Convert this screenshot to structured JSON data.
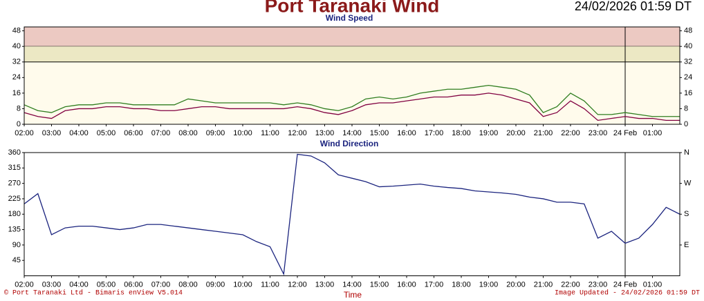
{
  "title": "Port Taranaki Wind",
  "timestamp": "24/02/2026 01:59 DT",
  "x_label": "Time",
  "footer_left": "© Port Taranaki Ltd - Bimaris enView V5.014",
  "footer_right": "Image Updated - 24/02/2026 01:59 DT",
  "chart_data": [
    {
      "type": "line",
      "title": "Wind Speed",
      "background": "#fffbec",
      "bands": [
        {
          "from": 40,
          "to": 50,
          "color": "#ecc9c2"
        },
        {
          "from": 32,
          "to": 40,
          "color": "#ece8c4"
        }
      ],
      "xlim": [
        0,
        24
      ],
      "ylim": [
        0,
        50
      ],
      "y2lim": [
        0,
        50
      ],
      "yticks": [
        0,
        8,
        16,
        24,
        32,
        40,
        48
      ],
      "y2ticks": [
        0,
        8,
        16,
        24,
        32,
        40,
        48
      ],
      "xticks": [
        {
          "value": 0,
          "label": "02:00"
        },
        {
          "value": 1,
          "label": "03:00"
        },
        {
          "value": 2,
          "label": "04:00"
        },
        {
          "value": 3,
          "label": "05:00"
        },
        {
          "value": 4,
          "label": "06:00"
        },
        {
          "value": 5,
          "label": "07:00"
        },
        {
          "value": 6,
          "label": "08:00"
        },
        {
          "value": 7,
          "label": "09:00"
        },
        {
          "value": 8,
          "label": "10:00"
        },
        {
          "value": 9,
          "label": "11:00"
        },
        {
          "value": 10,
          "label": "12:00"
        },
        {
          "value": 11,
          "label": "13:00"
        },
        {
          "value": 12,
          "label": "14:00"
        },
        {
          "value": 13,
          "label": "15:00"
        },
        {
          "value": 14,
          "label": "16:00"
        },
        {
          "value": 15,
          "label": "17:00"
        },
        {
          "value": 16,
          "label": "18:00"
        },
        {
          "value": 17,
          "label": "19:00"
        },
        {
          "value": 18,
          "label": "20:00"
        },
        {
          "value": 19,
          "label": "21:00"
        },
        {
          "value": 20,
          "label": "22:00"
        },
        {
          "value": 21,
          "label": "23:00"
        },
        {
          "value": 22,
          "label": "24 Feb"
        },
        {
          "value": 23,
          "label": "01:00"
        }
      ],
      "day_line": 22,
      "x": [
        0,
        0.5,
        1,
        1.5,
        2,
        2.5,
        3,
        3.5,
        4,
        4.5,
        5,
        5.5,
        6,
        6.5,
        7,
        7.5,
        8,
        8.5,
        9,
        9.5,
        10,
        10.5,
        11,
        11.5,
        12,
        12.5,
        13,
        13.5,
        14,
        14.5,
        15,
        15.5,
        16,
        16.5,
        17,
        17.5,
        18,
        18.5,
        19,
        19.5,
        20,
        20.5,
        21,
        21.5,
        22,
        22.5,
        23,
        23.5,
        24
      ],
      "series": [
        {
          "color": "#2e7d1e",
          "values": [
            10,
            7,
            6,
            9,
            10,
            10,
            11,
            11,
            10,
            10,
            10,
            10,
            13,
            12,
            11,
            11,
            11,
            11,
            11,
            10,
            11,
            10,
            8,
            7,
            9,
            13,
            14,
            13,
            14,
            16,
            17,
            18,
            18,
            19,
            20,
            19,
            18,
            15,
            6,
            9,
            16,
            12,
            5,
            5,
            6,
            5,
            4,
            4,
            4
          ]
        },
        {
          "color": "#800040",
          "values": [
            6,
            4,
            3,
            7,
            8,
            8,
            9,
            9,
            8,
            8,
            7,
            7,
            8,
            9,
            9,
            8,
            8,
            8,
            8,
            8,
            9,
            8,
            6,
            5,
            7,
            10,
            11,
            11,
            12,
            13,
            14,
            14,
            15,
            15,
            16,
            15,
            13,
            11,
            4,
            6,
            12,
            8,
            2,
            3,
            4,
            3,
            3,
            2,
            2
          ]
        }
      ]
    },
    {
      "type": "line",
      "title": "Wind Direction",
      "background": "#ffffff",
      "xlim": [
        0,
        24
      ],
      "ylim": [
        0,
        360
      ],
      "y2lim": [
        0,
        360
      ],
      "yticks": [
        45,
        90,
        135,
        180,
        225,
        270,
        315,
        360
      ],
      "y2ticks": [
        {
          "value": 90,
          "label": "E"
        },
        {
          "value": 180,
          "label": "S"
        },
        {
          "value": 270,
          "label": "W"
        },
        {
          "value": 360,
          "label": "N"
        }
      ],
      "xticks": [
        {
          "value": 0,
          "label": "02:00"
        },
        {
          "value": 1,
          "label": "03:00"
        },
        {
          "value": 2,
          "label": "04:00"
        },
        {
          "value": 3,
          "label": "05:00"
        },
        {
          "value": 4,
          "label": "06:00"
        },
        {
          "value": 5,
          "label": "07:00"
        },
        {
          "value": 6,
          "label": "08:00"
        },
        {
          "value": 7,
          "label": "09:00"
        },
        {
          "value": 8,
          "label": "10:00"
        },
        {
          "value": 9,
          "label": "11:00"
        },
        {
          "value": 10,
          "label": "12:00"
        },
        {
          "value": 11,
          "label": "13:00"
        },
        {
          "value": 12,
          "label": "14:00"
        },
        {
          "value": 13,
          "label": "15:00"
        },
        {
          "value": 14,
          "label": "16:00"
        },
        {
          "value": 15,
          "label": "17:00"
        },
        {
          "value": 16,
          "label": "18:00"
        },
        {
          "value": 17,
          "label": "19:00"
        },
        {
          "value": 18,
          "label": "20:00"
        },
        {
          "value": 19,
          "label": "21:00"
        },
        {
          "value": 20,
          "label": "22:00"
        },
        {
          "value": 21,
          "label": "23:00"
        },
        {
          "value": 22,
          "label": "24 Feb"
        },
        {
          "value": 23,
          "label": "01:00"
        }
      ],
      "day_line": 22,
      "x": [
        0,
        0.5,
        1,
        1.5,
        2,
        2.5,
        3,
        3.5,
        4,
        4.5,
        5,
        5.5,
        6,
        6.5,
        7,
        7.5,
        8,
        8.5,
        9,
        9.5,
        10,
        10.5,
        11,
        11.5,
        12,
        12.5,
        13,
        13.5,
        14,
        14.5,
        15,
        15.5,
        16,
        16.5,
        17,
        17.5,
        18,
        18.5,
        19,
        19.5,
        20,
        20.5,
        21,
        21.5,
        22,
        22.5,
        23,
        23.5,
        24
      ],
      "series": [
        {
          "color": "#1a237e",
          "values": [
            210,
            240,
            120,
            140,
            145,
            145,
            140,
            135,
            140,
            150,
            150,
            145,
            140,
            135,
            130,
            125,
            120,
            100,
            85,
            5,
            355,
            350,
            330,
            295,
            285,
            275,
            260,
            262,
            265,
            268,
            262,
            258,
            255,
            248,
            245,
            242,
            238,
            230,
            225,
            215,
            215,
            210,
            110,
            130,
            95,
            110,
            150,
            200,
            180
          ]
        }
      ]
    }
  ]
}
